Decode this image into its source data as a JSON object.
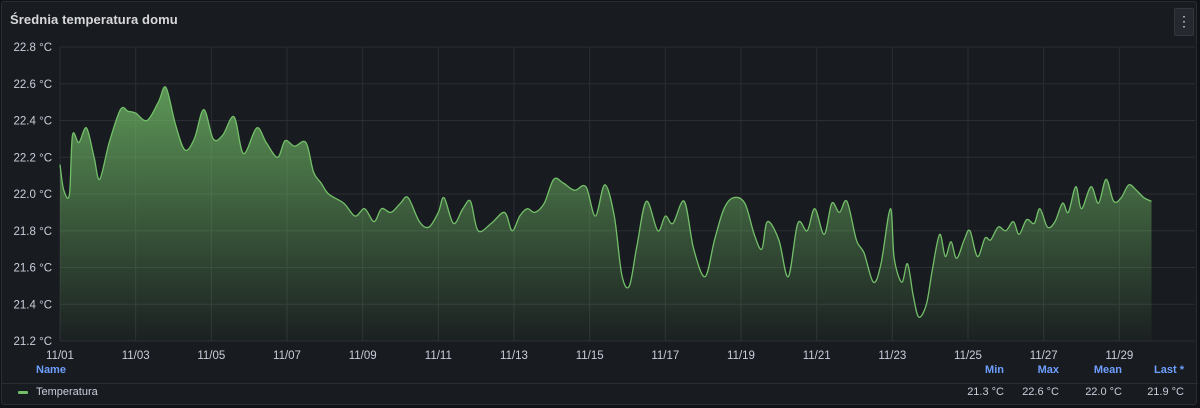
{
  "panel": {
    "title": "Średnia temperatura domu",
    "menu_icon": "kebab-menu-icon"
  },
  "legend": {
    "headers": {
      "name": "Name",
      "min": "Min",
      "max": "Max",
      "mean": "Mean",
      "last": "Last *"
    },
    "series": [
      {
        "name": "Temperatura",
        "min": "21.3 °C",
        "max": "22.6 °C",
        "mean": "22.0 °C",
        "last": "21.9 °C",
        "color": "#73bf69"
      }
    ]
  },
  "chart_data": {
    "type": "area",
    "title": "Średnia temperatura domu",
    "unit": "°C",
    "ylim": [
      21.2,
      22.8
    ],
    "yticks": [
      21.2,
      21.4,
      21.6,
      21.8,
      22.0,
      22.2,
      22.4,
      22.6,
      22.8
    ],
    "ytick_labels": [
      "21.2 °C",
      "21.4 °C",
      "21.6 °C",
      "21.8 °C",
      "22.0 °C",
      "22.2 °C",
      "22.4 °C",
      "22.6 °C",
      "22.8 °C"
    ],
    "xlim": [
      0,
      30
    ],
    "xticks": [
      0,
      2,
      4,
      6,
      8,
      10,
      12,
      14,
      16,
      18,
      20,
      22,
      24,
      26,
      28
    ],
    "xtick_labels": [
      "11/01",
      "11/03",
      "11/05",
      "11/07",
      "11/09",
      "11/11",
      "11/13",
      "11/15",
      "11/17",
      "11/19",
      "11/21",
      "11/23",
      "11/25",
      "11/27",
      "11/29"
    ],
    "grid": true,
    "series": [
      {
        "name": "Temperatura",
        "color": "#73bf69",
        "points": [
          [
            0.0,
            22.16
          ],
          [
            0.1,
            22.02
          ],
          [
            0.25,
            22.0
          ],
          [
            0.33,
            22.32
          ],
          [
            0.5,
            22.28
          ],
          [
            0.7,
            22.36
          ],
          [
            0.9,
            22.2
          ],
          [
            1.05,
            22.08
          ],
          [
            1.3,
            22.28
          ],
          [
            1.6,
            22.46
          ],
          [
            1.8,
            22.45
          ],
          [
            2.0,
            22.44
          ],
          [
            2.3,
            22.4
          ],
          [
            2.6,
            22.5
          ],
          [
            2.8,
            22.58
          ],
          [
            3.05,
            22.38
          ],
          [
            3.3,
            22.24
          ],
          [
            3.55,
            22.3
          ],
          [
            3.8,
            22.46
          ],
          [
            4.05,
            22.3
          ],
          [
            4.3,
            22.32
          ],
          [
            4.6,
            22.42
          ],
          [
            4.85,
            22.22
          ],
          [
            5.2,
            22.36
          ],
          [
            5.45,
            22.28
          ],
          [
            5.75,
            22.2
          ],
          [
            5.95,
            22.29
          ],
          [
            6.2,
            22.26
          ],
          [
            6.5,
            22.28
          ],
          [
            6.7,
            22.12
          ],
          [
            6.9,
            22.06
          ],
          [
            7.1,
            22.0
          ],
          [
            7.5,
            21.95
          ],
          [
            7.8,
            21.88
          ],
          [
            8.05,
            21.92
          ],
          [
            8.3,
            21.85
          ],
          [
            8.5,
            21.92
          ],
          [
            8.75,
            21.9
          ],
          [
            9.0,
            21.95
          ],
          [
            9.2,
            21.98
          ],
          [
            9.5,
            21.85
          ],
          [
            9.75,
            21.82
          ],
          [
            10.0,
            21.9
          ],
          [
            10.15,
            21.98
          ],
          [
            10.4,
            21.84
          ],
          [
            10.65,
            21.92
          ],
          [
            10.85,
            21.96
          ],
          [
            11.05,
            21.8
          ],
          [
            11.4,
            21.84
          ],
          [
            11.75,
            21.9
          ],
          [
            11.95,
            21.8
          ],
          [
            12.15,
            21.88
          ],
          [
            12.35,
            21.92
          ],
          [
            12.55,
            21.9
          ],
          [
            12.8,
            21.95
          ],
          [
            13.05,
            22.08
          ],
          [
            13.3,
            22.06
          ],
          [
            13.6,
            22.02
          ],
          [
            13.9,
            22.04
          ],
          [
            14.15,
            21.88
          ],
          [
            14.4,
            22.05
          ],
          [
            14.65,
            21.88
          ],
          [
            14.85,
            21.56
          ],
          [
            15.05,
            21.5
          ],
          [
            15.25,
            21.72
          ],
          [
            15.5,
            21.96
          ],
          [
            15.8,
            21.8
          ],
          [
            16.0,
            21.88
          ],
          [
            16.2,
            21.84
          ],
          [
            16.5,
            21.96
          ],
          [
            16.75,
            21.7
          ],
          [
            17.05,
            21.55
          ],
          [
            17.3,
            21.75
          ],
          [
            17.55,
            21.92
          ],
          [
            17.8,
            21.98
          ],
          [
            18.1,
            21.95
          ],
          [
            18.35,
            21.78
          ],
          [
            18.55,
            21.7
          ],
          [
            18.7,
            21.85
          ],
          [
            19.0,
            21.75
          ],
          [
            19.25,
            21.55
          ],
          [
            19.5,
            21.84
          ],
          [
            19.75,
            21.8
          ],
          [
            19.95,
            21.92
          ],
          [
            20.2,
            21.78
          ],
          [
            20.4,
            21.95
          ],
          [
            20.6,
            21.9
          ],
          [
            20.8,
            21.96
          ],
          [
            21.05,
            21.75
          ],
          [
            21.25,
            21.68
          ],
          [
            21.5,
            21.52
          ],
          [
            21.7,
            21.62
          ],
          [
            21.95,
            21.92
          ],
          [
            22.05,
            21.65
          ],
          [
            22.25,
            21.52
          ],
          [
            22.4,
            21.62
          ],
          [
            22.55,
            21.45
          ],
          [
            22.7,
            21.33
          ],
          [
            22.9,
            21.4
          ],
          [
            23.05,
            21.58
          ],
          [
            23.25,
            21.78
          ],
          [
            23.4,
            21.66
          ],
          [
            23.55,
            21.74
          ],
          [
            23.7,
            21.65
          ],
          [
            23.9,
            21.75
          ],
          [
            24.05,
            21.8
          ],
          [
            24.25,
            21.66
          ],
          [
            24.45,
            21.76
          ],
          [
            24.6,
            21.75
          ],
          [
            24.8,
            21.82
          ],
          [
            25.0,
            21.8
          ],
          [
            25.2,
            21.85
          ],
          [
            25.35,
            21.78
          ],
          [
            25.55,
            21.86
          ],
          [
            25.75,
            21.84
          ],
          [
            25.9,
            21.92
          ],
          [
            26.1,
            21.82
          ],
          [
            26.3,
            21.85
          ],
          [
            26.5,
            21.95
          ],
          [
            26.65,
            21.9
          ],
          [
            26.85,
            22.04
          ],
          [
            27.0,
            21.92
          ],
          [
            27.25,
            22.04
          ],
          [
            27.45,
            21.95
          ],
          [
            27.65,
            22.08
          ],
          [
            27.85,
            21.96
          ],
          [
            28.05,
            21.98
          ],
          [
            28.25,
            22.05
          ],
          [
            28.45,
            22.02
          ],
          [
            28.65,
            21.98
          ],
          [
            28.85,
            21.96
          ]
        ]
      }
    ]
  }
}
